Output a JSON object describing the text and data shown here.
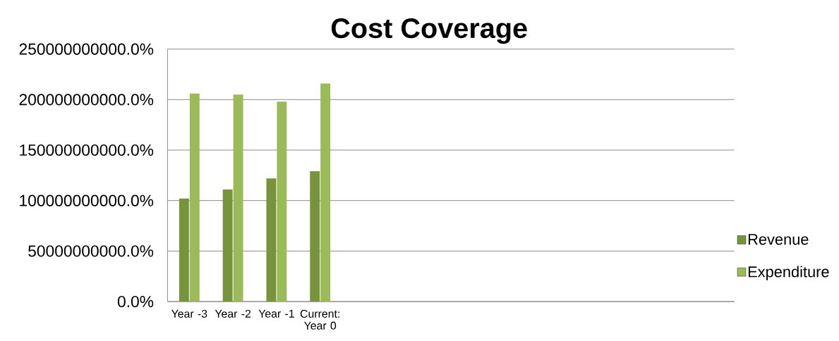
{
  "chart_data": {
    "type": "bar",
    "title": "Cost Coverage",
    "categories": [
      "Year -3",
      "Year -2",
      "Year -1",
      "Current: Year 0",
      null,
      null,
      null,
      null,
      null,
      null,
      null,
      null,
      null
    ],
    "series": [
      {
        "name": "Revenue",
        "color": "#77933c",
        "values": [
          102000000000,
          111000000000,
          122000000000,
          129000000000,
          null,
          null,
          null,
          null,
          null,
          null,
          null,
          null,
          null
        ]
      },
      {
        "name": "Expenditure",
        "color": "#9bbb59",
        "values": [
          206000000000,
          205000000000,
          198000000000,
          216000000000,
          null,
          null,
          null,
          null,
          null,
          null,
          null,
          null,
          null
        ]
      }
    ],
    "ylim": [
      0,
      250000000000
    ],
    "yticks": [
      {
        "value": 0,
        "label": "0.0%"
      },
      {
        "value": 50000000000,
        "label": "50000000000.0%"
      },
      {
        "value": 100000000000,
        "label": "100000000000.0%"
      },
      {
        "value": 150000000000,
        "label": "150000000000.0%"
      },
      {
        "value": 200000000000,
        "label": "200000000000.0%"
      },
      {
        "value": 250000000000,
        "label": "250000000000.0%"
      }
    ],
    "grid": "y",
    "legend": "right"
  }
}
